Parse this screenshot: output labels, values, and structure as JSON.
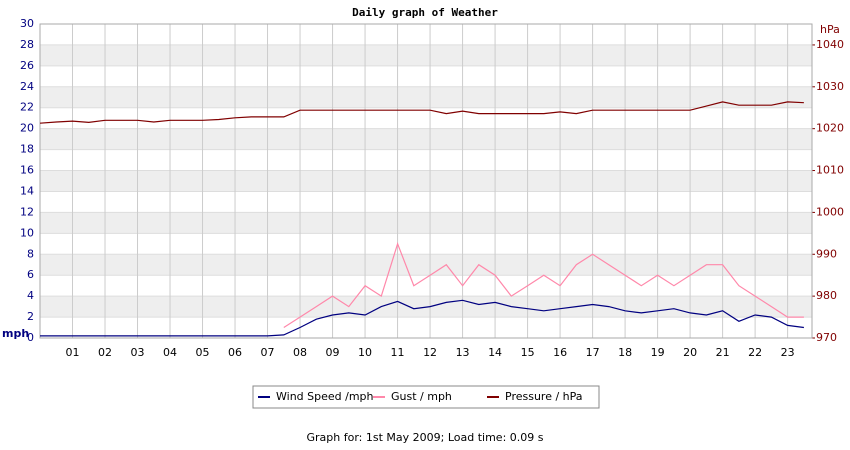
{
  "chart_data": {
    "type": "line",
    "title": "Daily graph of Weather",
    "ylabel": "mph",
    "y2label": "hPa",
    "footer": "Graph for: 1st May 2009; Load time: 0.09 s",
    "legend": "bottom",
    "grid": true,
    "xlim": [
      0,
      23.75
    ],
    "xticks": [
      {
        "value": 1,
        "label": "01"
      },
      {
        "value": 2,
        "label": "02"
      },
      {
        "value": 3,
        "label": "03"
      },
      {
        "value": 4,
        "label": "04"
      },
      {
        "value": 5,
        "label": "05"
      },
      {
        "value": 6,
        "label": "06"
      },
      {
        "value": 7,
        "label": "07"
      },
      {
        "value": 8,
        "label": "08"
      },
      {
        "value": 9,
        "label": "09"
      },
      10,
      11,
      12,
      13,
      14,
      15,
      16,
      17,
      18,
      19,
      20,
      21,
      22,
      23
    ],
    "ylim": [
      0,
      30
    ],
    "yticks": [
      0,
      2,
      4,
      6,
      8,
      10,
      12,
      14,
      16,
      18,
      20,
      22,
      24,
      26,
      28,
      30
    ],
    "y2lim": [
      970,
      1045
    ],
    "y2ticks": [
      970,
      980,
      990,
      1000,
      1010,
      1020,
      1030,
      1040
    ],
    "x": [
      0,
      0.5,
      1,
      1.5,
      2,
      2.5,
      3,
      3.5,
      4,
      4.5,
      5,
      5.5,
      6,
      6.5,
      7,
      7.5,
      8,
      8.5,
      9,
      9.5,
      10,
      10.5,
      11,
      11.5,
      12,
      12.5,
      13,
      13.5,
      14,
      14.5,
      15,
      15.5,
      16,
      16.5,
      17,
      17.5,
      18,
      18.5,
      19,
      19.5,
      20,
      20.5,
      21,
      21.5,
      22,
      22.5,
      23,
      23.5
    ],
    "series": [
      {
        "name": "Wind Speed /mph",
        "color": "#000080",
        "values": [
          0.2,
          0.2,
          0.2,
          0.2,
          0.2,
          0.2,
          0.2,
          0.2,
          0.2,
          0.2,
          0.2,
          0.2,
          0.2,
          0.2,
          0.2,
          0.3,
          1,
          1.8,
          2.2,
          2.4,
          2.2,
          3,
          3.5,
          2.8,
          3,
          3.4,
          3.6,
          3.2,
          3.4,
          3,
          2.8,
          2.6,
          2.8,
          3,
          3.2,
          3,
          2.6,
          2.4,
          2.6,
          2.8,
          2.4,
          2.2,
          2.6,
          1.6,
          2.2,
          2,
          1.2,
          1
        ]
      },
      {
        "name": "Gust / mph",
        "color": "#ff88aa",
        "values": [
          null,
          null,
          null,
          null,
          null,
          null,
          null,
          null,
          null,
          null,
          null,
          null,
          null,
          null,
          null,
          1,
          2,
          3,
          4,
          3,
          5,
          4,
          9,
          5,
          6,
          7,
          5,
          7,
          6,
          4,
          5,
          6,
          5,
          7,
          8,
          7,
          6,
          5,
          6,
          5,
          6,
          7,
          7,
          5,
          4,
          3,
          2,
          2
        ]
      },
      {
        "name": "Pressure / hPa",
        "color": "#800000",
        "axis": "y2",
        "values": [
          1021.3,
          1021.6,
          1021.8,
          1021.5,
          1022,
          1022,
          1022,
          1021.6,
          1022,
          1022,
          1022,
          1022.2,
          1022.6,
          1022.8,
          1022.8,
          1022.8,
          1024.4,
          1024.4,
          1024.4,
          1024.4,
          1024.4,
          1024.4,
          1024.4,
          1024.4,
          1024.4,
          1023.6,
          1024.2,
          1023.6,
          1023.6,
          1023.6,
          1023.6,
          1023.6,
          1024,
          1023.6,
          1024.4,
          1024.4,
          1024.4,
          1024.4,
          1024.4,
          1024.4,
          1024.4,
          1025.4,
          1026.4,
          1025.6,
          1025.6,
          1025.6,
          1026.4,
          1026.2
        ]
      }
    ]
  }
}
